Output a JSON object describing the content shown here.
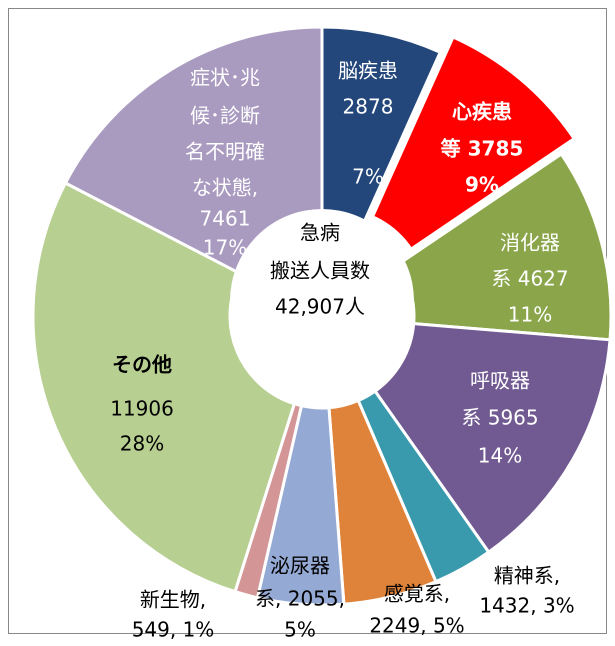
{
  "chart_data": {
    "type": "donut",
    "values": [
      2878,
      3785,
      4627,
      5965,
      1432,
      2249,
      2055,
      549,
      11906,
      7461
    ],
    "colors": [
      "#23477a",
      "#ff0000",
      "#8aa54a",
      "#715a91",
      "#3a9aad",
      "#e0833a",
      "#94a9d3",
      "#d39595",
      "#b8cf92",
      "#a99bc0"
    ],
    "exploded": 1,
    "labels": [
      [
        "脳疾患",
        "2878",
        "7%"
      ],
      [
        "心疾患",
        "等 3785",
        "9%"
      ],
      [
        "消化器",
        "系 4627",
        "11%"
      ],
      [
        "呼吸器",
        "系 5965",
        "14%"
      ],
      [
        "精神系,",
        "1432, 3%"
      ],
      [
        "感覚系,",
        "2249, 5%"
      ],
      [
        "泌尿器",
        "系, 2055,",
        "5%"
      ],
      [
        "新生物,",
        "549, 1%"
      ],
      [
        "その他",
        "11906",
        "28%"
      ],
      [
        "症状･兆",
        "候･診断",
        "名不明確",
        "な状態,",
        "7461",
        "17%"
      ]
    ],
    "center_text": [
      "急病",
      "搬送人員数",
      "42,907人"
    ]
  }
}
